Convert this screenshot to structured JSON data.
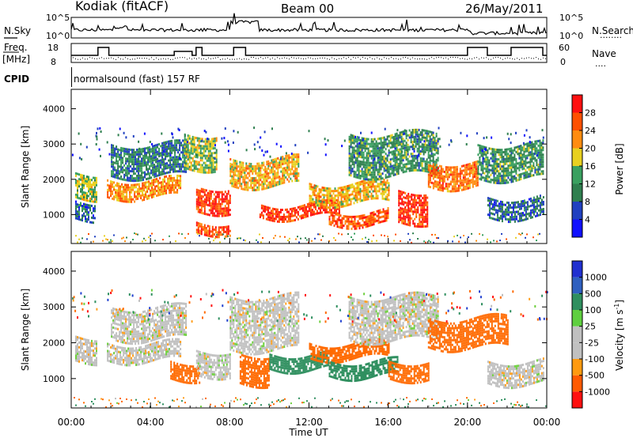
{
  "header": {
    "station": "Kodiak (fitACF)",
    "beam": "Beam 00",
    "date": "26/May/2011"
  },
  "panels": {
    "nsky_label": "N.Sky",
    "nsearch_label": "N.Search",
    "nsearch_dots": "........",
    "nsky_ticks": [
      "10^5",
      "10^0"
    ],
    "nsearch_ticks": [
      "10^5",
      "10^0"
    ],
    "freq_label_1": "Freq.",
    "freq_label_2": "[MHz]",
    "freq_ticks": [
      "18",
      "8"
    ],
    "nave_label": "Nave",
    "nave_dots": "....",
    "nave_ticks": [
      "60",
      "0"
    ],
    "cpid_label": "CPID",
    "cpid_text": "normalsound (fast) 157 RF"
  },
  "colors": {
    "power_scale": [
      "#1010ff",
      "#2040c0",
      "#2f7f4f",
      "#3aa060",
      "#e8d020",
      "#ff8c10",
      "#ff5000",
      "#ff1010"
    ],
    "velocity_scale": [
      "#ff1010",
      "#ff5a00",
      "#ff9a10",
      "#c0c0c0",
      "#c0c0c0",
      "#5fcf3f",
      "#2f8f5f",
      "#2f60c0",
      "#2030d0"
    ]
  },
  "chart_data": [
    {
      "type": "heatmap",
      "panel": "power",
      "xlabel": "Time UT",
      "ylabel": "Slant Range [km]",
      "x_ticks": [
        "00:00",
        "04:00",
        "08:00",
        "12:00",
        "16:00",
        "20:00",
        "00:00"
      ],
      "y_ticks": [
        "1000",
        "2000",
        "3000",
        "4000"
      ],
      "ylim": [
        180,
        4550
      ],
      "xlim_hours": [
        0,
        24
      ],
      "colorbar": {
        "label": "Power [dB]",
        "ticks": [
          "4",
          "8",
          "12",
          "16",
          "20",
          "24",
          "28"
        ],
        "range": [
          0,
          32
        ]
      },
      "echo_bands": [
        {
          "t": [
            0.2,
            1.3
          ],
          "r": [
            1500,
            2200
          ],
          "power": 16
        },
        {
          "t": [
            0.2,
            1.2
          ],
          "r": [
            900,
            1400
          ],
          "power": 8
        },
        {
          "t": [
            1.8,
            5.5
          ],
          "r": [
            1500,
            2000
          ],
          "power": 22
        },
        {
          "t": [
            2.0,
            5.8
          ],
          "r": [
            2100,
            3000
          ],
          "power": 10
        },
        {
          "t": [
            5.7,
            7.3
          ],
          "r": [
            2300,
            3300
          ],
          "power": 16
        },
        {
          "t": [
            6.3,
            8.0
          ],
          "r": [
            1100,
            1800
          ],
          "power": 28
        },
        {
          "t": [
            6.3,
            8.0
          ],
          "r": [
            500,
            800
          ],
          "power": 26
        },
        {
          "t": [
            8.0,
            11.5
          ],
          "r": [
            1800,
            2600
          ],
          "power": 20
        },
        {
          "t": [
            9.5,
            13.5
          ],
          "r": [
            900,
            1300
          ],
          "power": 28
        },
        {
          "t": [
            12.0,
            16.0
          ],
          "r": [
            1300,
            1900
          ],
          "power": 20
        },
        {
          "t": [
            13.0,
            16.0
          ],
          "r": [
            700,
            1100
          ],
          "power": 26
        },
        {
          "t": [
            14.0,
            18.5
          ],
          "r": [
            2100,
            3300
          ],
          "power": 12
        },
        {
          "t": [
            16.5,
            18.0
          ],
          "r": [
            800,
            1700
          ],
          "power": 28
        },
        {
          "t": [
            18.0,
            20.5
          ],
          "r": [
            1800,
            2500
          ],
          "power": 24
        },
        {
          "t": [
            20.5,
            23.8
          ],
          "r": [
            2000,
            3000
          ],
          "power": 12
        },
        {
          "t": [
            21.0,
            23.8
          ],
          "r": [
            900,
            1500
          ],
          "power": 8
        }
      ]
    },
    {
      "type": "heatmap",
      "panel": "velocity",
      "xlabel": "Time UT",
      "ylabel": "Slant Range [km]",
      "x_ticks": [
        "00:00",
        "04:00",
        "08:00",
        "12:00",
        "16:00",
        "20:00",
        "00:00"
      ],
      "y_ticks": [
        "1000",
        "2000",
        "3000",
        "4000"
      ],
      "ylim": [
        180,
        4550
      ],
      "xlim_hours": [
        0,
        24
      ],
      "colorbar": {
        "label": "Velocity [m s^-1]",
        "ticks": [
          "1000",
          "500",
          "100",
          "25",
          "-25",
          "-100",
          "-500",
          "-1000"
        ]
      },
      "echo_bands": [
        {
          "t": [
            0.2,
            1.3
          ],
          "r": [
            1500,
            2200
          ],
          "velocity": 0
        },
        {
          "t": [
            1.8,
            5.5
          ],
          "r": [
            1500,
            2000
          ],
          "velocity": 0
        },
        {
          "t": [
            2.0,
            5.8
          ],
          "r": [
            2100,
            3000
          ],
          "velocity": 0
        },
        {
          "t": [
            5.0,
            6.5
          ],
          "r": [
            1000,
            1500
          ],
          "velocity": -300
        },
        {
          "t": [
            6.3,
            8.0
          ],
          "r": [
            1100,
            1800
          ],
          "velocity": 0
        },
        {
          "t": [
            8.0,
            11.5
          ],
          "r": [
            1800,
            3300
          ],
          "velocity": 0
        },
        {
          "t": [
            8.5,
            10.0
          ],
          "r": [
            900,
            1700
          ],
          "velocity": -200
        },
        {
          "t": [
            10.0,
            13.0
          ],
          "r": [
            1300,
            1700
          ],
          "velocity": 150
        },
        {
          "t": [
            12.0,
            16.0
          ],
          "r": [
            1600,
            2000
          ],
          "velocity": -300
        },
        {
          "t": [
            13.0,
            16.5
          ],
          "r": [
            1100,
            1500
          ],
          "velocity": 200
        },
        {
          "t": [
            14.0,
            18.5
          ],
          "r": [
            2100,
            3300
          ],
          "velocity": 0
        },
        {
          "t": [
            16.0,
            18.0
          ],
          "r": [
            1000,
            1500
          ],
          "velocity": -200
        },
        {
          "t": [
            18.0,
            22.0
          ],
          "r": [
            1900,
            2700
          ],
          "velocity": -300
        },
        {
          "t": [
            21.0,
            23.8
          ],
          "r": [
            900,
            1500
          ],
          "velocity": 0
        }
      ]
    }
  ]
}
